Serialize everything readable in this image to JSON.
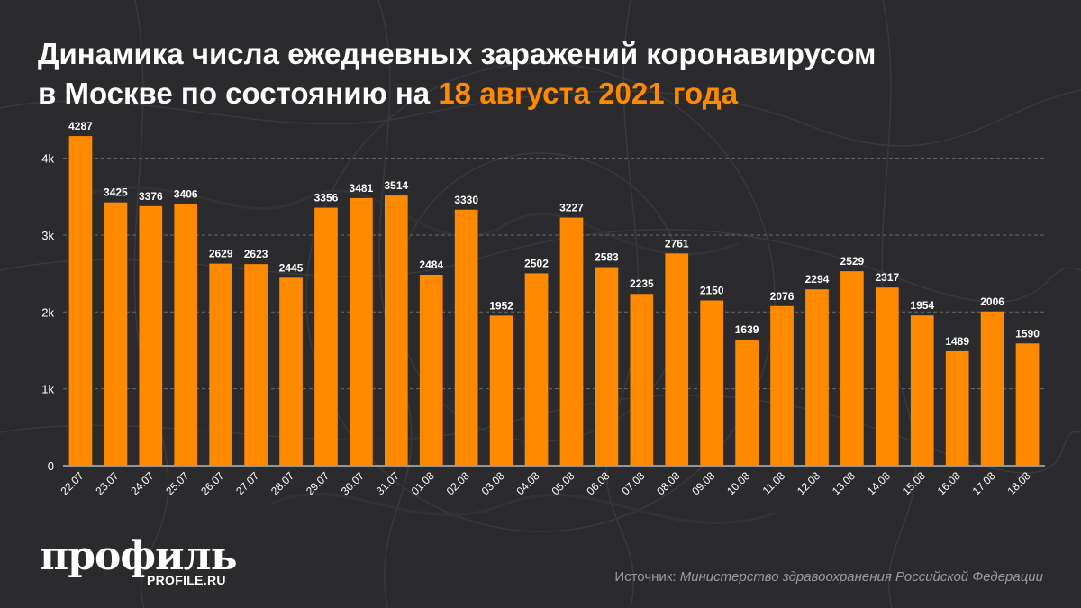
{
  "title": {
    "line1": "Динамика числа ежедневных заражений коронавирусом",
    "line2_prefix": "в Москве по состоянию на ",
    "line2_accent": "18 августа 2021 года"
  },
  "colors": {
    "background": "#2b2b2e",
    "bar": "#ff8a00",
    "accent": "#ff8a00",
    "text": "#ffffff",
    "grid": "#6b6b70"
  },
  "chart_data": {
    "type": "bar",
    "categories": [
      "22.07",
      "23.07",
      "24.07",
      "25.07",
      "26.07",
      "27.07",
      "28.07",
      "29.07",
      "30.07",
      "31.07",
      "01.08",
      "02.08",
      "03.08",
      "04.08",
      "05.08",
      "06.08",
      "07.08",
      "08.08",
      "09.08",
      "10.08",
      "11.08",
      "12.08",
      "13.08",
      "14.08",
      "15.08",
      "16.08",
      "17.08",
      "18.08"
    ],
    "values": [
      4287,
      3425,
      3376,
      3406,
      2629,
      2623,
      2445,
      3356,
      3481,
      3514,
      2484,
      3330,
      1952,
      2502,
      3227,
      2583,
      2235,
      2761,
      2150,
      1639,
      2076,
      2294,
      2529,
      2317,
      1954,
      1489,
      2006,
      1590
    ],
    "yticks": [
      0,
      1000,
      2000,
      3000,
      4000
    ],
    "ytick_labels": [
      "0",
      "1k",
      "2k",
      "3k",
      "4k"
    ],
    "ylim": [
      0,
      4300
    ],
    "grid": "horizontal dashed",
    "xlabel": "",
    "ylabel": ""
  },
  "logo": {
    "main": "профиль",
    "sub": "PROFILE.RU"
  },
  "source": {
    "label": "Источник: ",
    "value": "Министерство здравоохранения Российской Федерации"
  }
}
